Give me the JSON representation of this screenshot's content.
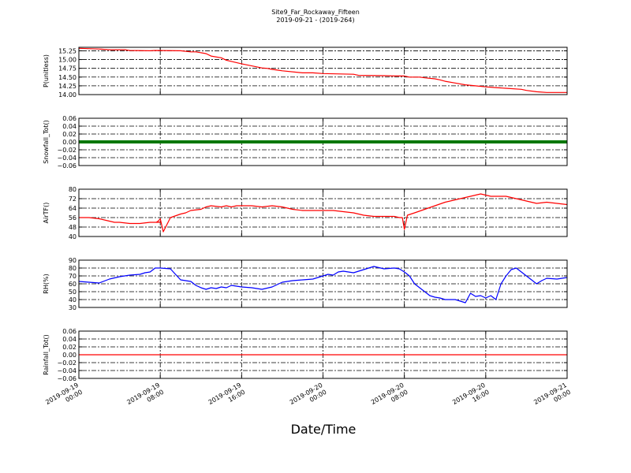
{
  "figure": {
    "title": "Site9_Far_Rockaway_Fifteen",
    "subtitle": "2019-09-21 - (2019-264)",
    "xlabel": "Date/Time"
  },
  "chart_data": [
    {
      "type": "line",
      "ylabel": "P(unitless)",
      "ylim": [
        14.0,
        15.35
      ],
      "yticks": [
        14.0,
        14.25,
        14.5,
        14.75,
        15.0,
        15.25
      ],
      "ytick_labels": [
        "14.00",
        "14.25",
        "14.50",
        "14.75",
        "15.00",
        "15.25"
      ],
      "color": "#ff0000",
      "xlim": [
        0,
        48
      ],
      "x": [
        0,
        2,
        3,
        4.5,
        5,
        7,
        7.5,
        10,
        11,
        11.5,
        12.5,
        13,
        14,
        14.5,
        16,
        17,
        18,
        18.5,
        19,
        19.5,
        20,
        22,
        23,
        24,
        27,
        27.5,
        30,
        31,
        32,
        32.5,
        33.5,
        34,
        35,
        35.5,
        36,
        37,
        38,
        39,
        40,
        41,
        42,
        43.5,
        44,
        45,
        46,
        48
      ],
      "values": [
        15.32,
        15.3,
        15.28,
        15.28,
        15.26,
        15.25,
        15.26,
        15.25,
        15.22,
        15.22,
        15.17,
        15.1,
        15.05,
        14.98,
        14.88,
        14.82,
        14.76,
        14.75,
        14.72,
        14.7,
        14.68,
        14.62,
        14.62,
        14.6,
        14.58,
        14.55,
        14.54,
        14.53,
        14.53,
        14.5,
        14.5,
        14.48,
        14.45,
        14.42,
        14.38,
        14.33,
        14.28,
        14.25,
        14.22,
        14.2,
        14.18,
        14.15,
        14.12,
        14.08,
        14.06,
        14.06
      ]
    },
    {
      "type": "line",
      "ylabel": "Snowfall_Tot()",
      "ylim": [
        -0.06,
        0.06
      ],
      "yticks": [
        -0.06,
        -0.04,
        -0.02,
        0.0,
        0.02,
        0.04,
        0.06
      ],
      "ytick_labels": [
        "−0.06",
        "−0.04",
        "−0.02",
        "0.00",
        "0.02",
        "0.04",
        "0.06"
      ],
      "color": "#007700",
      "line_width": 4,
      "xlim": [
        0,
        48
      ],
      "x": [
        0,
        48
      ],
      "values": [
        0,
        0
      ]
    },
    {
      "type": "line",
      "ylabel": "AirTF()",
      "ylim": [
        40,
        80
      ],
      "yticks": [
        40,
        48,
        56,
        64,
        72,
        80
      ],
      "ytick_labels": [
        "40",
        "48",
        "56",
        "64",
        "72",
        "80"
      ],
      "color": "#ff0000",
      "xlim": [
        0,
        48
      ],
      "x": [
        0,
        1,
        2,
        3,
        3.5,
        4,
        5,
        6,
        7,
        8,
        7.6,
        7.8,
        8.0,
        8.3,
        9,
        10,
        10.5,
        11,
        12,
        12.5,
        13,
        14,
        14.5,
        15,
        15.5,
        16,
        17,
        18,
        19,
        20,
        20.5,
        21,
        22,
        23,
        24,
        25,
        26,
        27,
        28,
        29,
        30,
        31,
        31.5,
        31.8,
        32.0,
        32.3,
        33,
        34,
        35,
        36,
        37,
        38,
        38.5,
        39,
        39.5,
        40,
        40.5,
        41,
        42,
        43,
        44,
        45,
        46,
        47,
        48
      ],
      "values": [
        56,
        56,
        55,
        53,
        52,
        52,
        51,
        51,
        52,
        52,
        52,
        53,
        55,
        44,
        56,
        59,
        60,
        62,
        63,
        65,
        66,
        65,
        66,
        65,
        66,
        66,
        66,
        65,
        66,
        65,
        64,
        63,
        62,
        62,
        62,
        62,
        61,
        60,
        58,
        57,
        57,
        57,
        56,
        56,
        46,
        58,
        60,
        63,
        66,
        69,
        71,
        73,
        74,
        75,
        76,
        75,
        74,
        74,
        74,
        72,
        70,
        68,
        69,
        68,
        67
      ],
      "note": ""
    },
    {
      "type": "line",
      "ylabel": "RH(%)",
      "ylim": [
        30,
        90
      ],
      "yticks": [
        30,
        40,
        50,
        60,
        70,
        80,
        90
      ],
      "ytick_labels": [
        "30",
        "40",
        "50",
        "60",
        "70",
        "80",
        "90"
      ],
      "color": "#0000ff",
      "xlim": [
        0,
        48
      ],
      "x": [
        0,
        1,
        2,
        3,
        4,
        5,
        6,
        6.5,
        7,
        7.5,
        8,
        9,
        9.5,
        10,
        11,
        11.5,
        12,
        12.5,
        13,
        13.5,
        14,
        14.5,
        15,
        16,
        17,
        18,
        19,
        20,
        21,
        22,
        23,
        24,
        24.5,
        25,
        25.5,
        26,
        27,
        28,
        29,
        30,
        31,
        31.5,
        32,
        32.5,
        33,
        33.5,
        34,
        34.5,
        35,
        35.5,
        36,
        37,
        37.5,
        38,
        38.5,
        39,
        39.5,
        40,
        40.5,
        41,
        41.5,
        42,
        42.5,
        43,
        43.5,
        44,
        44.5,
        45,
        45.5,
        46,
        47,
        48
      ],
      "values": [
        63,
        62,
        61,
        66,
        69,
        71,
        72,
        74,
        75,
        80,
        80,
        79,
        72,
        65,
        63,
        58,
        55,
        53,
        55,
        54,
        56,
        55,
        58,
        56,
        55,
        53,
        56,
        62,
        64,
        65,
        66,
        70,
        72,
        71,
        75,
        76,
        74,
        78,
        82,
        79,
        80,
        79,
        75,
        70,
        60,
        55,
        50,
        45,
        43,
        42,
        40,
        40,
        38,
        36,
        48,
        44,
        45,
        42,
        45,
        40,
        60,
        70,
        78,
        80,
        75,
        70,
        65,
        60,
        64,
        67,
        66,
        68
      ]
    },
    {
      "type": "line",
      "ylabel": "Rainfall_Tot()",
      "ylim": [
        -0.06,
        0.06
      ],
      "yticks": [
        -0.06,
        -0.04,
        -0.02,
        0.0,
        0.02,
        0.04,
        0.06
      ],
      "ytick_labels": [
        "−0.06",
        "−0.04",
        "−0.02",
        "0.00",
        "0.02",
        "0.04",
        "0.06"
      ],
      "color": "#ff0000",
      "xlim": [
        0,
        48
      ],
      "x": [
        0,
        48
      ],
      "values": [
        0,
        0
      ]
    }
  ],
  "xaxis": {
    "tick_hours": [
      0,
      8,
      16,
      24,
      32,
      40,
      48
    ],
    "tick_labels": [
      [
        "2019-09-19",
        "00:00"
      ],
      [
        "2019-09-19",
        "08:00"
      ],
      [
        "2019-09-19",
        "16:00"
      ],
      [
        "2019-09-20",
        "00:00"
      ],
      [
        "2019-09-20",
        "08:00"
      ],
      [
        "2019-09-20",
        "16:00"
      ],
      [
        "2019-09-21",
        "00:00"
      ]
    ]
  }
}
